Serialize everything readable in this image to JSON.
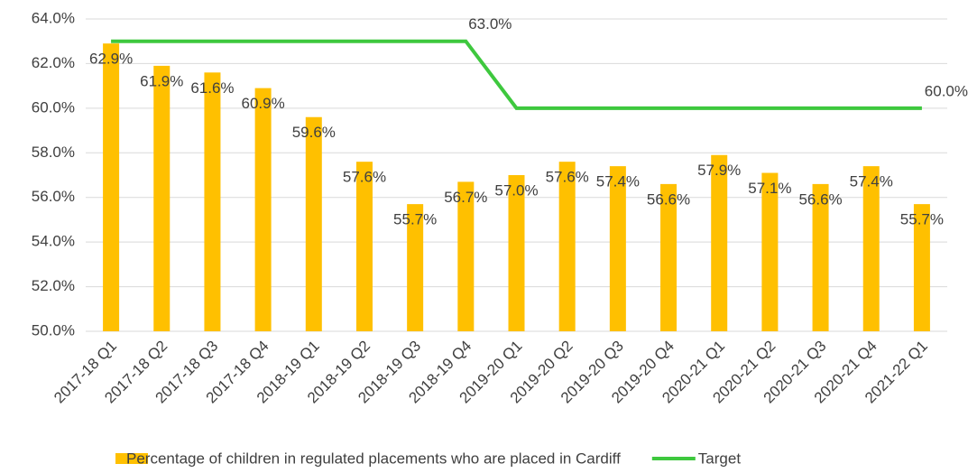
{
  "chart_data": {
    "type": "bar",
    "categories": [
      "2017-18 Q1",
      "2017-18 Q2",
      "2017-18 Q3",
      "2017-18 Q4",
      "2018-19 Q1",
      "2018-19 Q2",
      "2018-19 Q3",
      "2018-19 Q4",
      "2019-20 Q1",
      "2019-20 Q2",
      "2019-20 Q3",
      "2019-20 Q4",
      "2020-21 Q1",
      "2020-21 Q2",
      "2020-21 Q3",
      "2020-21 Q4",
      "2021-22 Q1"
    ],
    "series": [
      {
        "name": "Percentage of children in regulated placements who are placed in Cardiff",
        "type": "bar",
        "color": "#ffc000",
        "values": [
          62.9,
          61.9,
          61.6,
          60.9,
          59.6,
          57.6,
          55.7,
          56.7,
          57.0,
          57.6,
          57.4,
          56.6,
          57.9,
          57.1,
          56.6,
          57.4,
          55.7
        ],
        "value_labels": [
          "62.9%",
          "61.9%",
          "61.6%",
          "60.9%",
          "59.6%",
          "57.6%",
          "55.7%",
          "56.7%",
          "57.0%",
          "57.6%",
          "57.4%",
          "56.6%",
          "57.9%",
          "57.1%",
          "56.6%",
          "57.4%",
          "55.7%"
        ]
      },
      {
        "name": "Target",
        "type": "line",
        "color": "#3ec83e",
        "values": [
          63,
          63,
          63,
          63,
          63,
          63,
          63,
          63,
          60,
          60,
          60,
          60,
          60,
          60,
          60,
          60,
          60
        ],
        "value_labels": [
          null,
          null,
          null,
          null,
          null,
          null,
          null,
          "63.0%",
          null,
          null,
          null,
          null,
          null,
          null,
          null,
          null,
          "60.0%"
        ]
      }
    ],
    "ylim": [
      50,
      64
    ],
    "yticks": [
      {
        "value": 50,
        "label": "50.0%"
      },
      {
        "value": 52,
        "label": "52.0%"
      },
      {
        "value": 54,
        "label": "54.0%"
      },
      {
        "value": 56,
        "label": "56.0%"
      },
      {
        "value": 58,
        "label": "58.0%"
      },
      {
        "value": 60,
        "label": "60.0%"
      },
      {
        "value": 62,
        "label": "62.0%"
      },
      {
        "value": 64,
        "label": "64.0%"
      }
    ],
    "grid": true
  }
}
